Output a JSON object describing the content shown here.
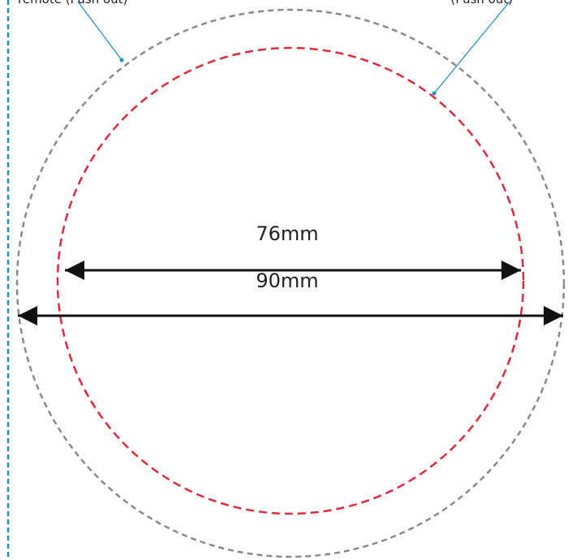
{
  "callouts": {
    "left": "remote (Push out)",
    "right": "(Push out)"
  },
  "dimensions": [
    {
      "label": "76mm"
    },
    {
      "label": "90mm"
    }
  ]
}
